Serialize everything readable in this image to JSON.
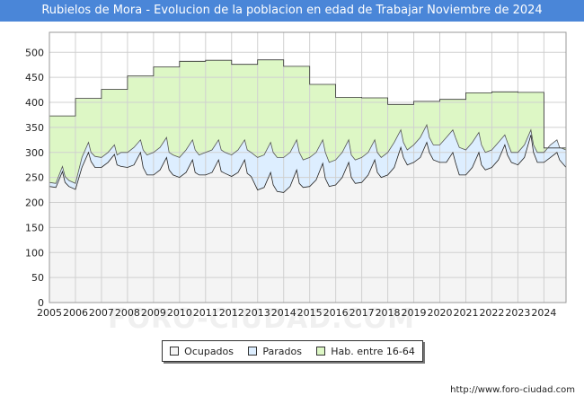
{
  "header": {
    "title": "Rubielos de Mora - Evolucion de la poblacion en edad de Trabajar Noviembre de 2024"
  },
  "footer": {
    "url": "http://www.foro-ciudad.com"
  },
  "watermark": "FORO-CIUDAD.COM",
  "colors": {
    "title_bg": "#4a86d8",
    "hab_fill": "#ddf7c5",
    "parados_fill": "#ddeeff",
    "ocupados_fill": "#f4f4f4",
    "grid": "#d0d0d0",
    "line": "#333333"
  },
  "chart_data": {
    "type": "area",
    "title": "Rubielos de Mora - Evolucion de la poblacion en edad de Trabajar Noviembre de 2024",
    "xlabel": "",
    "ylabel": "",
    "x_range": [
      2005,
      2024.85
    ],
    "ylim": [
      0,
      540
    ],
    "yticks": [
      0,
      50,
      100,
      150,
      200,
      250,
      300,
      350,
      400,
      450,
      500
    ],
    "xticks": [
      2005,
      2006,
      2007,
      2008,
      2009,
      2010,
      2011,
      2012,
      2013,
      2014,
      2015,
      2016,
      2017,
      2018,
      2019,
      2020,
      2021,
      2022,
      2023,
      2024
    ],
    "grid": true,
    "legend_position": "bottom",
    "series": [
      {
        "name": "Hab. entre 16-64",
        "kind": "step",
        "x": [
          2005,
          2006,
          2007,
          2008,
          2009,
          2010,
          2011,
          2012,
          2013,
          2014,
          2015,
          2016,
          2017,
          2018,
          2019,
          2020,
          2021,
          2022,
          2023,
          2024
        ],
        "values": [
          373,
          408,
          426,
          453,
          471,
          482,
          484,
          476,
          485,
          472,
          436,
          410,
          409,
          396,
          402,
          406,
          419,
          421,
          420,
          309
        ]
      },
      {
        "name": "Parados",
        "kind": "line",
        "x": [
          2005,
          2005.25,
          2005.5,
          2005.6,
          2005.75,
          2006,
          2006.25,
          2006.5,
          2006.6,
          2006.75,
          2007,
          2007.25,
          2007.5,
          2007.6,
          2007.75,
          2008,
          2008.25,
          2008.5,
          2008.6,
          2008.75,
          2009,
          2009.25,
          2009.5,
          2009.6,
          2009.75,
          2010,
          2010.25,
          2010.5,
          2010.6,
          2010.75,
          2011,
          2011.25,
          2011.5,
          2011.6,
          2011.75,
          2012,
          2012.25,
          2012.5,
          2012.6,
          2012.75,
          2013,
          2013.25,
          2013.5,
          2013.6,
          2013.75,
          2014,
          2014.25,
          2014.5,
          2014.6,
          2014.75,
          2015,
          2015.25,
          2015.5,
          2015.6,
          2015.75,
          2016,
          2016.25,
          2016.5,
          2016.6,
          2016.75,
          2017,
          2017.25,
          2017.5,
          2017.6,
          2017.75,
          2018,
          2018.25,
          2018.5,
          2018.6,
          2018.75,
          2019,
          2019.25,
          2019.5,
          2019.6,
          2019.75,
          2020,
          2020.25,
          2020.5,
          2020.6,
          2020.75,
          2021,
          2021.25,
          2021.5,
          2021.6,
          2021.75,
          2022,
          2022.25,
          2022.5,
          2022.6,
          2022.75,
          2023,
          2023.25,
          2023.5,
          2023.6,
          2023.75,
          2024,
          2024.25,
          2024.5,
          2024.6,
          2024.85
        ],
        "values": [
          240,
          238,
          272,
          252,
          244,
          238,
          290,
          320,
          300,
          292,
          290,
          300,
          315,
          295,
          300,
          300,
          310,
          325,
          305,
          295,
          300,
          310,
          330,
          300,
          295,
          290,
          305,
          325,
          305,
          295,
          300,
          305,
          325,
          305,
          300,
          295,
          305,
          325,
          305,
          300,
          290,
          295,
          320,
          300,
          290,
          290,
          300,
          325,
          300,
          285,
          290,
          300,
          325,
          300,
          280,
          285,
          300,
          325,
          295,
          285,
          290,
          300,
          325,
          300,
          290,
          300,
          320,
          345,
          320,
          305,
          315,
          330,
          355,
          330,
          315,
          315,
          330,
          345,
          330,
          310,
          305,
          320,
          340,
          315,
          300,
          305,
          320,
          335,
          320,
          300,
          300,
          315,
          345,
          315,
          300,
          300,
          315,
          325,
          310,
          305
        ]
      },
      {
        "name": "Ocupados",
        "kind": "line",
        "x": [
          2005,
          2005.25,
          2005.5,
          2005.6,
          2005.75,
          2006,
          2006.25,
          2006.5,
          2006.6,
          2006.75,
          2007,
          2007.25,
          2007.5,
          2007.6,
          2007.75,
          2008,
          2008.25,
          2008.5,
          2008.6,
          2008.75,
          2009,
          2009.25,
          2009.5,
          2009.6,
          2009.75,
          2010,
          2010.25,
          2010.5,
          2010.6,
          2010.75,
          2011,
          2011.25,
          2011.5,
          2011.6,
          2011.75,
          2012,
          2012.25,
          2012.5,
          2012.6,
          2012.75,
          2013,
          2013.25,
          2013.5,
          2013.6,
          2013.75,
          2014,
          2014.25,
          2014.5,
          2014.6,
          2014.75,
          2015,
          2015.25,
          2015.5,
          2015.6,
          2015.75,
          2016,
          2016.25,
          2016.5,
          2016.6,
          2016.75,
          2017,
          2017.25,
          2017.5,
          2017.6,
          2017.75,
          2018,
          2018.25,
          2018.5,
          2018.6,
          2018.75,
          2019,
          2019.25,
          2019.5,
          2019.6,
          2019.75,
          2020,
          2020.25,
          2020.5,
          2020.6,
          2020.75,
          2021,
          2021.25,
          2021.5,
          2021.6,
          2021.75,
          2022,
          2022.25,
          2022.5,
          2022.6,
          2022.75,
          2023,
          2023.25,
          2023.5,
          2023.6,
          2023.75,
          2024,
          2024.25,
          2024.5,
          2024.6,
          2024.85
        ],
        "values": [
          232,
          230,
          262,
          240,
          232,
          226,
          270,
          300,
          282,
          270,
          270,
          280,
          296,
          275,
          272,
          270,
          275,
          300,
          270,
          255,
          255,
          265,
          290,
          265,
          255,
          250,
          260,
          285,
          260,
          255,
          255,
          260,
          285,
          262,
          258,
          252,
          260,
          285,
          258,
          252,
          225,
          230,
          260,
          235,
          222,
          220,
          232,
          265,
          238,
          230,
          232,
          245,
          278,
          248,
          232,
          235,
          250,
          280,
          250,
          238,
          240,
          255,
          285,
          260,
          250,
          255,
          270,
          310,
          290,
          275,
          280,
          290,
          320,
          300,
          285,
          280,
          280,
          300,
          280,
          255,
          255,
          270,
          300,
          275,
          265,
          270,
          285,
          315,
          295,
          280,
          275,
          290,
          335,
          300,
          280,
          280,
          290,
          300,
          285,
          270
        ]
      }
    ]
  },
  "legend": {
    "items": [
      {
        "label": "Ocupados",
        "color": "#f4f4f4"
      },
      {
        "label": "Parados",
        "color": "#ddeeff"
      },
      {
        "label": "Hab. entre 16-64",
        "color": "#ddf7c5"
      }
    ]
  }
}
